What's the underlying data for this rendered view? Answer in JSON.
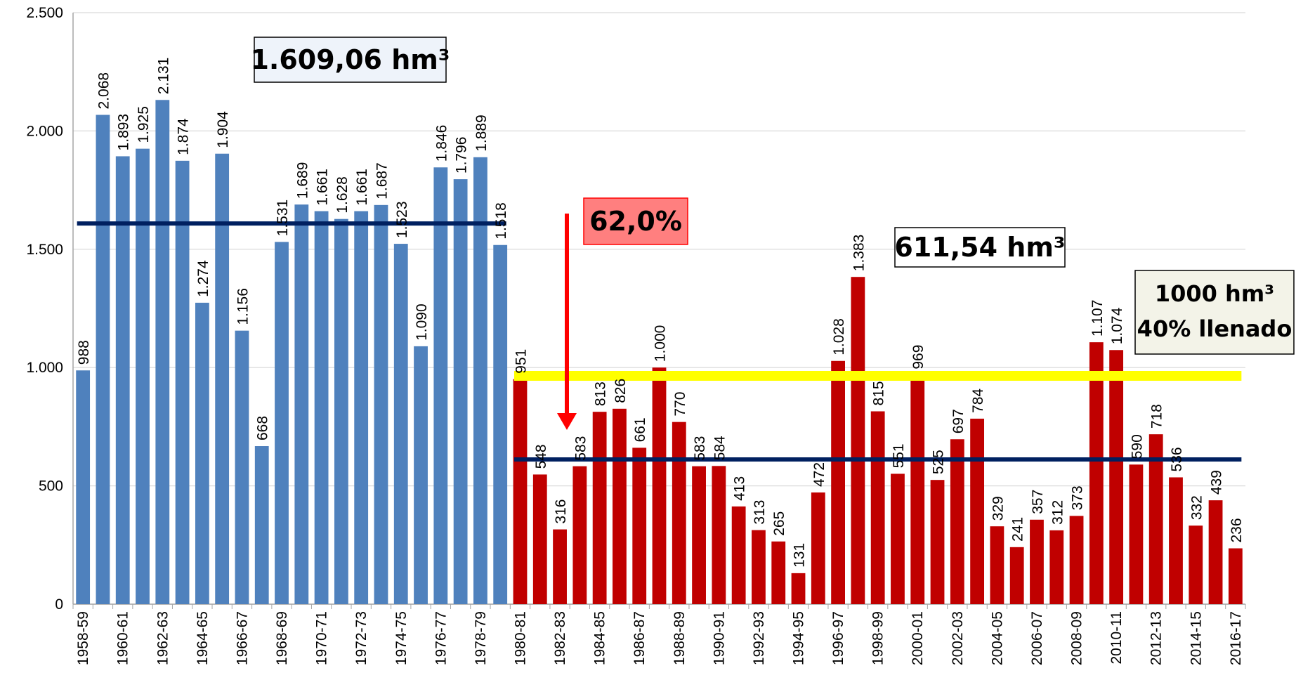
{
  "chart_data": {
    "type": "bar",
    "categories": [
      "1958-59",
      null,
      "1960-61",
      null,
      "1962-63",
      null,
      "1964-65",
      null,
      "1966-67",
      null,
      "1968-69",
      null,
      "1970-71",
      null,
      "1972-73",
      null,
      "1974-75",
      null,
      "1976-77",
      null,
      "1978-79",
      null,
      "1980-81",
      null,
      "1982-83",
      null,
      "1984-85",
      null,
      "1986-87",
      null,
      "1988-89",
      null,
      "1990-91",
      null,
      "1992-93",
      null,
      "1994-95",
      null,
      "1996-97",
      null,
      "1998-99",
      null,
      "2000-01",
      null,
      "2002-03",
      null,
      "2004-05",
      null,
      "2006-07",
      null,
      "2008-09",
      null,
      "2010-11",
      null,
      "2012-13",
      null,
      "2014-15",
      null,
      "2016-17"
    ],
    "series": [
      {
        "color": "#4f81bd",
        "values": [
          988,
          2068,
          1893,
          1925,
          2131,
          1874,
          1274,
          1904,
          1156,
          668,
          1531,
          1689,
          1661,
          1628,
          1661,
          1687,
          1523,
          1090,
          1846,
          1796,
          1889,
          1518,
          null,
          null,
          null,
          null,
          null,
          null,
          null,
          null,
          null,
          null,
          null,
          null,
          null,
          null,
          null,
          null,
          null,
          null,
          null,
          null,
          null,
          null,
          null,
          null,
          null,
          null,
          null,
          null,
          null,
          null,
          null,
          null,
          null,
          null,
          null,
          null,
          null
        ],
        "value_labels": [
          "988",
          "2.068",
          "1.893",
          "1.925",
          "2.131",
          "1.874",
          "1.274",
          "1.904",
          "1.156",
          "668",
          "1.531",
          "1.689",
          "1.661",
          "1.628",
          "1.661",
          "1.687",
          "1.523",
          "1.090",
          "1.846",
          "1.796",
          "1.889",
          "1.518",
          null,
          null,
          null,
          null,
          null,
          null,
          null,
          null,
          null,
          null,
          null,
          null,
          null,
          null,
          null,
          null,
          null,
          null,
          null,
          null,
          null,
          null,
          null,
          null,
          null,
          null,
          null,
          null,
          null,
          null,
          null,
          null,
          null,
          null,
          null,
          null,
          null
        ]
      },
      {
        "color": "#c00000",
        "values": [
          null,
          null,
          null,
          null,
          null,
          null,
          null,
          null,
          null,
          null,
          null,
          null,
          null,
          null,
          null,
          null,
          null,
          null,
          null,
          null,
          null,
          null,
          951,
          548,
          316,
          583,
          813,
          826,
          661,
          1000,
          770,
          583,
          584,
          413,
          313,
          265,
          131,
          472,
          1028,
          1383,
          815,
          551,
          969,
          525,
          697,
          784,
          329,
          241,
          357,
          312,
          373,
          1107,
          1074,
          590,
          718,
          536,
          332,
          439,
          236
        ],
        "value_labels": [
          null,
          null,
          null,
          null,
          null,
          null,
          null,
          null,
          null,
          null,
          null,
          null,
          null,
          null,
          null,
          null,
          null,
          null,
          null,
          null,
          null,
          null,
          "951",
          "548",
          "316",
          "583",
          "813",
          "826",
          "661",
          "1.000",
          "770",
          "583",
          "584",
          "413",
          "313",
          "265",
          "131",
          "472",
          "1.028",
          "1.383",
          "815",
          "551",
          "969",
          "525",
          "697",
          "784",
          "329",
          "241",
          "357",
          "312",
          "373",
          "1.107",
          "1.074",
          "590",
          "718",
          "536",
          "332",
          "439",
          "236"
        ]
      }
    ],
    "ylim": [
      0,
      2500
    ],
    "yticks": [
      0,
      500,
      {
        "value": 1000,
        "label": "1.000"
      },
      {
        "value": 1500,
        "label": "1.500"
      },
      {
        "value": 2000,
        "label": "2.000"
      },
      {
        "value": 2500,
        "label": "2.500"
      }
    ],
    "grid": true,
    "reference_lines": [
      {
        "value": 1609.06,
        "color": "#002060",
        "series": 0
      },
      {
        "value": 611.54,
        "color": "#002060",
        "series": 1
      },
      {
        "value": 965,
        "color": "#ffff00",
        "series": 1
      }
    ],
    "annotations": [
      {
        "text": "1.609,06 hm³"
      },
      {
        "text": "62,0%"
      },
      {
        "text": "611,54 hm³"
      },
      {
        "lines": [
          "1000 hm³",
          "40% llenado"
        ]
      }
    ]
  }
}
